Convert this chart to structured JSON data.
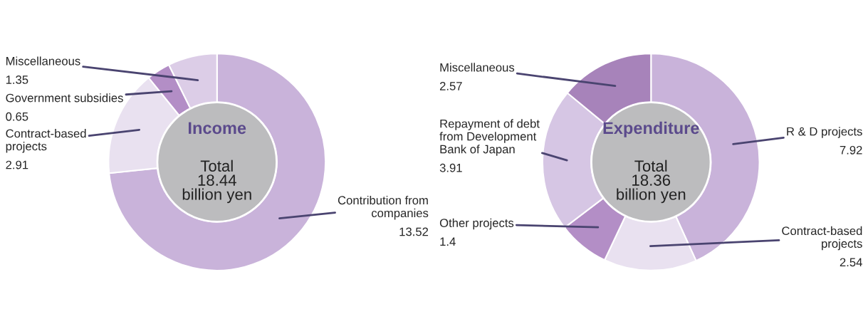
{
  "chart_data": [
    {
      "type": "donut",
      "title": "Income",
      "annotations": [
        "Total\n18.44\nbillion yen"
      ],
      "data_labels": true,
      "categories": [
        "Contribution from companies",
        "Contract-based projects",
        "Government subsidies",
        "Miscellaneous"
      ],
      "values": [
        13.52,
        2.91,
        0.65,
        1.35
      ],
      "colors": [
        "#c9b3da",
        "#e9e1f0",
        "#b38ec6",
        "#dccde7"
      ]
    },
    {
      "type": "donut",
      "title": "Expenditure",
      "annotations": [
        "Total\n18.36\nbillion yen"
      ],
      "data_labels": true,
      "categories": [
        "R & D projects",
        "Contract-based projects",
        "Other projects",
        "Repayment of debt from Development Bank of Japan",
        "Miscellaneous"
      ],
      "values": [
        7.92,
        2.54,
        1.4,
        3.91,
        2.57
      ],
      "colors": [
        "#c9b3da",
        "#e9e1f0",
        "#b38ec6",
        "#d6c6e4",
        "#a783ba"
      ]
    }
  ]
}
